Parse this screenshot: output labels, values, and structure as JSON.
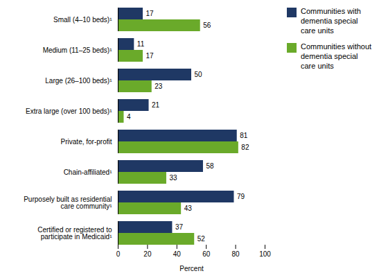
{
  "chart_data": {
    "type": "bar",
    "orientation": "horizontal",
    "categories": [
      "Small (4–10 beds)¹",
      "Medium (11–25 beds)¹",
      "Large (26–100 beds)¹",
      "Extra large (over 100 beds)¹",
      "Private, for-profit",
      "Chain-affiliated¹",
      "Purposely built as residential\ncare community¹",
      "Certified or registered to\nparticipate in Medicaid¹"
    ],
    "series": [
      {
        "name": "Communities with\ndementia special\ncare units",
        "color": "#1f3864",
        "values": [
          17,
          11,
          50,
          21,
          81,
          58,
          79,
          37
        ]
      },
      {
        "name": "Communities without\ndementia special\ncare units",
        "color": "#6aaa2a",
        "values": [
          56,
          17,
          23,
          4,
          82,
          33,
          43,
          52
        ]
      }
    ],
    "xlabel": "Percent",
    "xlim": [
      0,
      100
    ],
    "xticks": [
      0,
      20,
      40,
      60,
      80,
      100
    ],
    "grid": false,
    "legend": "upper right",
    "data_labels": true
  }
}
